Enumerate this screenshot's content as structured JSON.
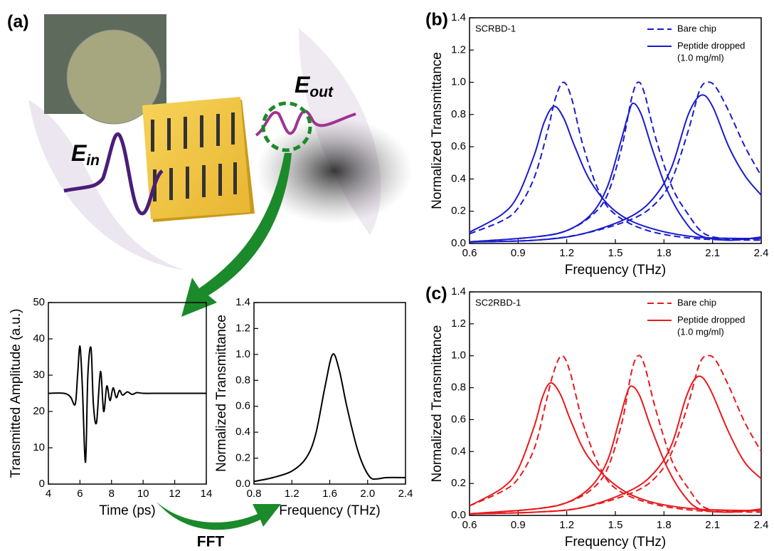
{
  "illustration": {
    "panel": "(a)",
    "e_in": {
      "symbol": "E",
      "subscript": "in"
    },
    "e_out": {
      "symbol": "E",
      "subscript": "out"
    },
    "fft": "FFT"
  },
  "chart_data": [
    {
      "type": "line",
      "xlabel": "Time (ps)",
      "ylabel": "Transmitted Amplitude (a.u.)",
      "xlim": [
        4,
        14
      ],
      "ylim": [
        0,
        50
      ],
      "xticks": [
        4,
        6,
        8,
        10,
        12,
        14
      ],
      "yticks": [
        0,
        10,
        20,
        30,
        40,
        50
      ],
      "series": [
        {
          "color": "#000000",
          "dash": false,
          "curves": [
            {
              "x": [
                4,
                5,
                5.4,
                5.7,
                5.85,
                6.0,
                6.15,
                6.35,
                6.5,
                6.7,
                6.85,
                7.05,
                7.3,
                7.5,
                7.7,
                7.9,
                8.1,
                8.3,
                8.5,
                8.7,
                9.0,
                9.3,
                9.6,
                10,
                11,
                12,
                13,
                14
              ],
              "values": [
                25,
                25,
                24,
                22,
                30,
                38,
                27,
                6,
                30,
                37.5,
                22,
                17,
                31,
                20,
                27,
                23,
                26.5,
                23.8,
                25.8,
                24.5,
                25.4,
                24.7,
                25.2,
                25,
                25,
                25,
                25,
                25
              ]
            }
          ]
        }
      ]
    },
    {
      "type": "line",
      "xlabel": "Frequency (THz)",
      "ylabel": "Normalized Transmittance",
      "xlim": [
        0.8,
        2.4
      ],
      "ylim": [
        0,
        1.4
      ],
      "xticks": [
        0.8,
        1.2,
        1.6,
        {
          "value": 2,
          "label": "2.0"
        },
        2.4
      ],
      "yticks": [
        {
          "value": 0,
          "label": "0.0"
        },
        0.2,
        0.4,
        0.6,
        0.8,
        {
          "value": 1,
          "label": "1.0"
        },
        1.2,
        1.4
      ],
      "series": [
        {
          "color": "#000000",
          "dash": false,
          "curves": [
            {
              "x": [
                0.8,
                1.0,
                1.2,
                1.35,
                1.45,
                1.55,
                1.63,
                1.7,
                1.78,
                1.88,
                1.95,
                2.03,
                2.1,
                2.2,
                2.4
              ],
              "values": [
                0.02,
                0.05,
                0.1,
                0.2,
                0.38,
                0.75,
                1.0,
                0.88,
                0.6,
                0.3,
                0.15,
                0.05,
                0.04,
                0.05,
                0.05
              ]
            }
          ]
        }
      ]
    },
    {
      "type": "line",
      "panel": "(b)",
      "sample": "SCRBD-1",
      "xlabel": "Frequency (THz)",
      "ylabel": "Normalized Transmittance",
      "xlim": [
        0.6,
        2.4
      ],
      "ylim": [
        0,
        1.4
      ],
      "xticks": [
        0.6,
        0.9,
        1.2,
        1.5,
        1.8,
        2.1,
        2.4
      ],
      "yticks": [
        {
          "value": 0,
          "label": "0.0"
        },
        0.2,
        0.4,
        0.6,
        0.8,
        {
          "value": 1,
          "label": "1.0"
        },
        1.2,
        1.4
      ],
      "legend": "upper right",
      "series": [
        {
          "name": "Bare chip",
          "color": "#1a1acf",
          "dash": true,
          "curves": [
            {
              "x": [
                0.6,
                0.8,
                0.9,
                1.0,
                1.08,
                1.13,
                1.18,
                1.23,
                1.3,
                1.4,
                1.5,
                1.7,
                2.0,
                2.4
              ],
              "values": [
                0.06,
                0.14,
                0.22,
                0.41,
                0.69,
                0.9,
                1.0,
                0.9,
                0.61,
                0.32,
                0.18,
                0.08,
                0.03,
                0.02
              ]
            },
            {
              "x": [
                0.6,
                1.0,
                1.2,
                1.35,
                1.45,
                1.54,
                1.6,
                1.64,
                1.68,
                1.75,
                1.85,
                1.95,
                2.05,
                2.2,
                2.4
              ],
              "values": [
                0.01,
                0.04,
                0.08,
                0.17,
                0.3,
                0.6,
                0.9,
                1.0,
                0.93,
                0.65,
                0.35,
                0.18,
                0.06,
                0.03,
                0.03
              ]
            },
            {
              "x": [
                0.6,
                1.0,
                1.3,
                1.6,
                1.75,
                1.85,
                1.95,
                2.02,
                2.07,
                2.12,
                2.2,
                2.3,
                2.4
              ],
              "values": [
                0.01,
                0.02,
                0.06,
                0.15,
                0.25,
                0.4,
                0.7,
                0.95,
                1.0,
                0.97,
                0.82,
                0.6,
                0.42
              ]
            }
          ]
        },
        {
          "name": "Peptide dropped",
          "note": "(1.0 mg/ml)",
          "color": "#1a1acf",
          "dash": false,
          "curves": [
            {
              "x": [
                0.6,
                0.8,
                0.9,
                1.0,
                1.06,
                1.12,
                1.18,
                1.25,
                1.35,
                1.5,
                1.7,
                2.0,
                2.4
              ],
              "values": [
                0.07,
                0.18,
                0.3,
                0.55,
                0.75,
                0.85,
                0.78,
                0.6,
                0.38,
                0.2,
                0.1,
                0.04,
                0.03
              ]
            },
            {
              "x": [
                0.6,
                1.0,
                1.2,
                1.35,
                1.45,
                1.53,
                1.58,
                1.61,
                1.66,
                1.73,
                1.82,
                1.92,
                2.02,
                2.2,
                2.4
              ],
              "values": [
                0.01,
                0.04,
                0.08,
                0.18,
                0.35,
                0.62,
                0.8,
                0.87,
                0.8,
                0.58,
                0.33,
                0.15,
                0.05,
                0.02,
                0.04
              ]
            },
            {
              "x": [
                0.6,
                1.0,
                1.3,
                1.6,
                1.75,
                1.85,
                1.95,
                2.03,
                2.1,
                2.2,
                2.3,
                2.4
              ],
              "values": [
                0.01,
                0.02,
                0.06,
                0.17,
                0.3,
                0.48,
                0.8,
                0.92,
                0.85,
                0.6,
                0.42,
                0.3
              ]
            }
          ]
        }
      ]
    },
    {
      "type": "line",
      "panel": "(c)",
      "sample": "SC2RBD-1",
      "xlabel": "Frequency (THz)",
      "ylabel": "Normalized Transmittance",
      "xlim": [
        0.6,
        2.4
      ],
      "ylim": [
        0,
        1.4
      ],
      "xticks": [
        0.6,
        0.9,
        1.2,
        1.5,
        1.8,
        2.1,
        2.4
      ],
      "yticks": [
        {
          "value": 0,
          "label": "0.0"
        },
        0.2,
        0.4,
        0.6,
        0.8,
        {
          "value": 1,
          "label": "1.0"
        },
        1.2,
        1.4
      ],
      "legend": "upper right",
      "series": [
        {
          "name": "Bare chip",
          "color": "#e8191c",
          "dash": true,
          "curves": [
            {
              "x": [
                0.6,
                0.8,
                0.9,
                1.0,
                1.07,
                1.12,
                1.17,
                1.22,
                1.3,
                1.4,
                1.5,
                1.7,
                2.0,
                2.4
              ],
              "values": [
                0.06,
                0.15,
                0.23,
                0.42,
                0.7,
                0.9,
                1.0,
                0.9,
                0.58,
                0.31,
                0.17,
                0.08,
                0.03,
                0.02
              ]
            },
            {
              "x": [
                0.6,
                1.0,
                1.2,
                1.35,
                1.45,
                1.54,
                1.6,
                1.64,
                1.68,
                1.75,
                1.85,
                1.95,
                2.05,
                2.2,
                2.4
              ],
              "values": [
                0.01,
                0.04,
                0.08,
                0.16,
                0.29,
                0.58,
                0.9,
                1.0,
                0.94,
                0.66,
                0.34,
                0.17,
                0.05,
                0.03,
                0.03
              ]
            },
            {
              "x": [
                0.6,
                1.0,
                1.3,
                1.6,
                1.75,
                1.85,
                1.95,
                2.02,
                2.07,
                2.12,
                2.2,
                2.3,
                2.4
              ],
              "values": [
                0.01,
                0.02,
                0.05,
                0.14,
                0.24,
                0.4,
                0.7,
                0.95,
                1.0,
                0.97,
                0.81,
                0.58,
                0.4
              ]
            }
          ]
        },
        {
          "name": "Peptide dropped",
          "note": "(1.0 mg/ml)",
          "color": "#e8191c",
          "dash": false,
          "curves": [
            {
              "x": [
                0.6,
                0.8,
                0.9,
                1.0,
                1.05,
                1.1,
                1.16,
                1.23,
                1.33,
                1.5,
                1.7,
                2.0,
                2.4
              ],
              "values": [
                0.06,
                0.17,
                0.29,
                0.56,
                0.74,
                0.83,
                0.76,
                0.58,
                0.37,
                0.19,
                0.09,
                0.04,
                0.03
              ]
            },
            {
              "x": [
                0.6,
                1.0,
                1.2,
                1.35,
                1.45,
                1.52,
                1.57,
                1.6,
                1.65,
                1.72,
                1.82,
                1.92,
                2.02,
                2.2,
                2.4
              ],
              "values": [
                0.01,
                0.04,
                0.08,
                0.18,
                0.34,
                0.58,
                0.76,
                0.81,
                0.75,
                0.55,
                0.3,
                0.13,
                0.04,
                0.02,
                0.04
              ]
            },
            {
              "x": [
                0.6,
                1.0,
                1.3,
                1.6,
                1.75,
                1.85,
                1.94,
                2.01,
                2.08,
                2.2,
                2.3,
                2.4
              ],
              "values": [
                0.01,
                0.02,
                0.05,
                0.16,
                0.28,
                0.45,
                0.75,
                0.87,
                0.8,
                0.52,
                0.33,
                0.23
              ]
            }
          ]
        }
      ]
    }
  ]
}
